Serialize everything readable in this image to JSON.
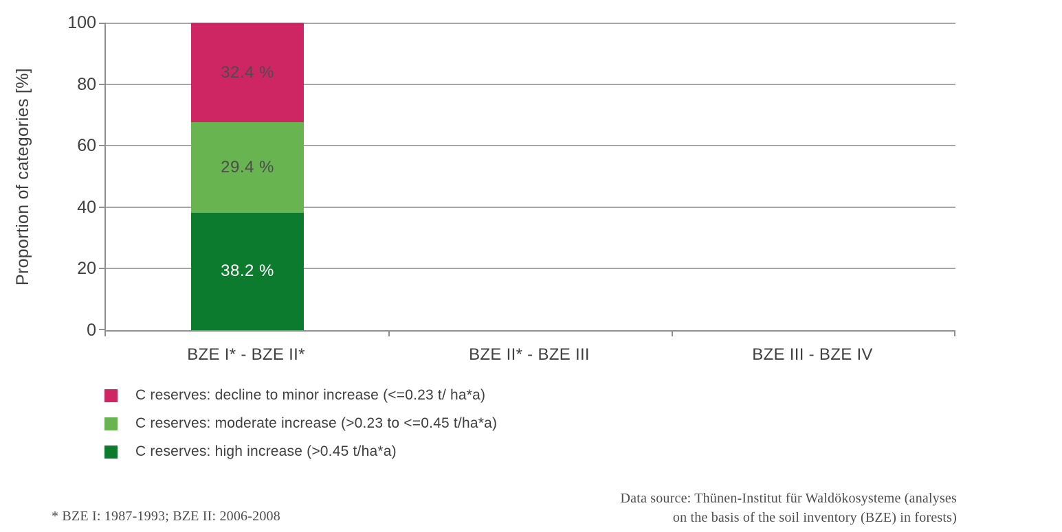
{
  "chart_data": {
    "type": "bar",
    "stacked": true,
    "title": "",
    "xlabel": "",
    "ylabel": "Proportion of categories [%]",
    "ylim": [
      0,
      100
    ],
    "yticks": [
      0,
      20,
      40,
      60,
      80,
      100
    ],
    "grid": "horizontal",
    "categories": [
      "BZE I* - BZE II*",
      "BZE II* - BZE III",
      "BZE III - BZE IV"
    ],
    "series": [
      {
        "name": "C reserves: high increase (>0.45 t/ha*a)",
        "color": "#0d7b2e",
        "label_color": "#ffffff",
        "values": [
          38.2,
          null,
          null
        ],
        "value_labels": [
          "38.2 %",
          "",
          ""
        ]
      },
      {
        "name": "C reserves: moderate increase (>0.23 to <=0.45 t/ha*a)",
        "color": "#67b450",
        "label_color": "#4d4d4d",
        "values": [
          29.4,
          null,
          null
        ],
        "value_labels": [
          "29.4 %",
          "",
          ""
        ]
      },
      {
        "name": "C reserves: decline to minor increase (<=0.23 t/ ha*a)",
        "color": "#ce2563",
        "label_color": "#4d4d4d",
        "values": [
          32.4,
          null,
          null
        ],
        "value_labels": [
          "32.4 %",
          "",
          ""
        ]
      }
    ],
    "legend_position": "bottom-left"
  },
  "legend": {
    "items": [
      {
        "label": "C reserves: decline to minor increase (<=0.23 t/ ha*a)",
        "color": "#ce2563"
      },
      {
        "label": "C reserves: moderate increase (>0.23 to <=0.45 t/ha*a)",
        "color": "#67b450"
      },
      {
        "label": "C reserves: high increase (>0.45 t/ha*a)",
        "color": "#0d7b2e"
      }
    ]
  },
  "footnotes": {
    "left": "* BZE I: 1987-1993; BZE II: 2006-2008",
    "source_line1": "Data source: Thünen-Institut für Waldökosysteme (analyses",
    "source_line2": "on the basis of the soil inventory (BZE) in forests)"
  },
  "colors": {
    "axis": "#909090",
    "gridline": "#a6a6a6",
    "text": "#404040"
  }
}
